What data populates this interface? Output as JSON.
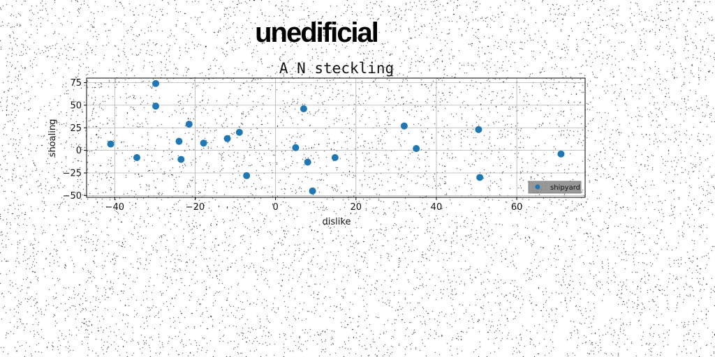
{
  "figure": {
    "supertitle": "unedificial"
  },
  "chart_data": {
    "type": "scatter",
    "title": "A N steckling",
    "xlabel": "dislike",
    "ylabel": "shoaling",
    "xlim": [
      -47,
      77
    ],
    "ylim": [
      -52,
      80
    ],
    "xticks": [
      -40,
      -20,
      0,
      20,
      40,
      60
    ],
    "xtick_labels": [
      "−40",
      "−20",
      "0",
      "20",
      "40",
      "60"
    ],
    "yticks": [
      -50,
      -25,
      0,
      25,
      50,
      75
    ],
    "ytick_labels": [
      "−50",
      "−25",
      "0",
      "25",
      "50",
      "75"
    ],
    "grid": true,
    "legend": {
      "placement": "lower-right"
    },
    "series": [
      {
        "name": "shipyard",
        "color": "#1f77b4",
        "points": [
          {
            "x": -41,
            "y": 7
          },
          {
            "x": -34.5,
            "y": -8
          },
          {
            "x": -29.8,
            "y": 74
          },
          {
            "x": -29.8,
            "y": 49
          },
          {
            "x": -24,
            "y": 10
          },
          {
            "x": -23.5,
            "y": -10
          },
          {
            "x": -21.5,
            "y": 29
          },
          {
            "x": -17.9,
            "y": 8
          },
          {
            "x": -12,
            "y": 13
          },
          {
            "x": -9,
            "y": 20
          },
          {
            "x": -7.2,
            "y": -28
          },
          {
            "x": 5,
            "y": 3
          },
          {
            "x": 7,
            "y": 46
          },
          {
            "x": 8,
            "y": -13
          },
          {
            "x": 9.2,
            "y": -45
          },
          {
            "x": 14.8,
            "y": -8
          },
          {
            "x": 32,
            "y": 27
          },
          {
            "x": 35,
            "y": 2
          },
          {
            "x": 50.5,
            "y": 23
          },
          {
            "x": 50.8,
            "y": -30
          },
          {
            "x": 71,
            "y": -4
          }
        ]
      }
    ]
  }
}
